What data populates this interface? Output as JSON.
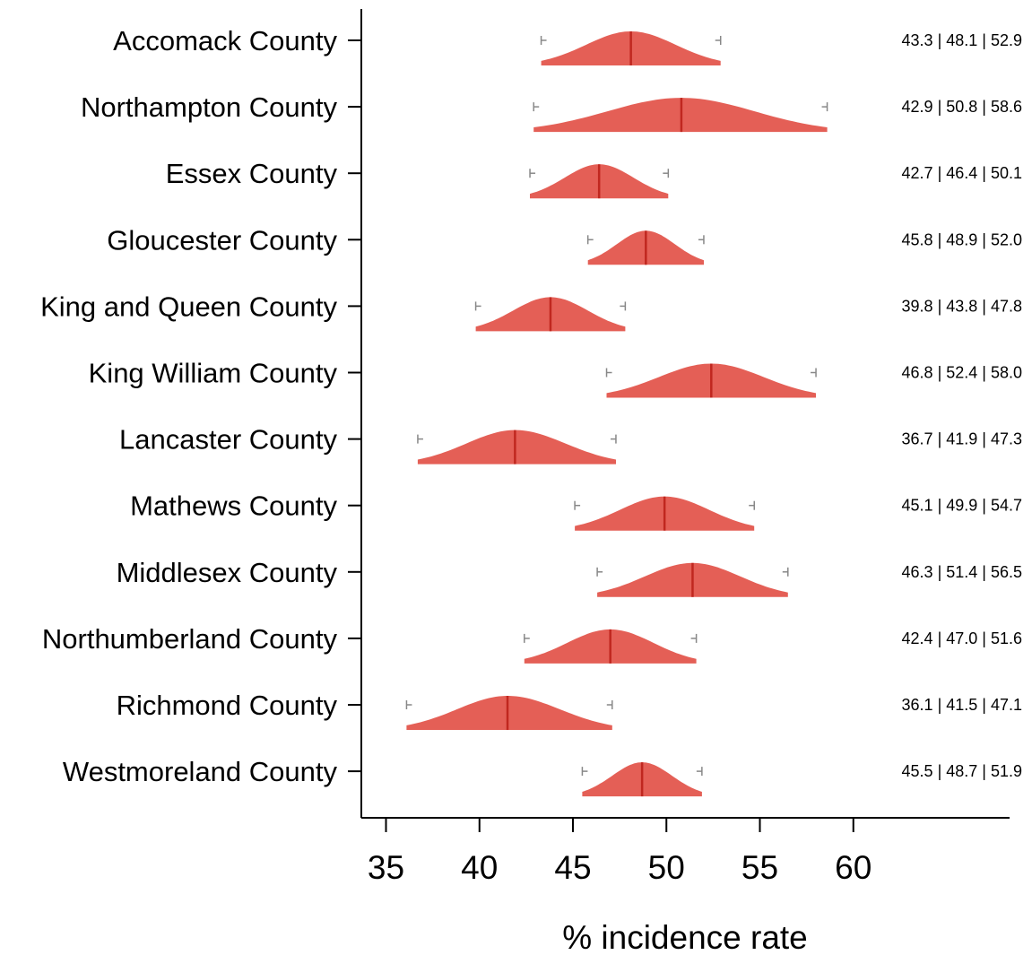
{
  "chart_data": {
    "type": "ridgeline",
    "xlabel": "% incidence rate",
    "xlim": [
      33.5,
      68.5
    ],
    "xticks": [
      35,
      40,
      45,
      50,
      55,
      60
    ],
    "fill_color": "#e45f56",
    "median_color": "#c0271f",
    "whisker_color": "#888888",
    "rows": [
      {
        "label": "Accomack County",
        "lower": 43.3,
        "median": 48.1,
        "upper": 52.9,
        "annotation": "43.3 | 48.1 | 52.9"
      },
      {
        "label": "Northampton County",
        "lower": 42.9,
        "median": 50.8,
        "upper": 58.6,
        "annotation": "42.9 | 50.8 | 58.6"
      },
      {
        "label": "Essex County",
        "lower": 42.7,
        "median": 46.4,
        "upper": 50.1,
        "annotation": "42.7 | 46.4 | 50.1"
      },
      {
        "label": "Gloucester County",
        "lower": 45.8,
        "median": 48.9,
        "upper": 52.0,
        "annotation": "45.8 | 48.9 | 52.0"
      },
      {
        "label": "King and Queen County",
        "lower": 39.8,
        "median": 43.8,
        "upper": 47.8,
        "annotation": "39.8 | 43.8 | 47.8"
      },
      {
        "label": "King William County",
        "lower": 46.8,
        "median": 52.4,
        "upper": 58.0,
        "annotation": "46.8 | 52.4 | 58.0"
      },
      {
        "label": "Lancaster County",
        "lower": 36.7,
        "median": 41.9,
        "upper": 47.3,
        "annotation": "36.7 | 41.9 | 47.3"
      },
      {
        "label": "Mathews County",
        "lower": 45.1,
        "median": 49.9,
        "upper": 54.7,
        "annotation": "45.1 | 49.9 | 54.7"
      },
      {
        "label": "Middlesex County",
        "lower": 46.3,
        "median": 51.4,
        "upper": 56.5,
        "annotation": "46.3 | 51.4 | 56.5"
      },
      {
        "label": "Northumberland County",
        "lower": 42.4,
        "median": 47.0,
        "upper": 51.6,
        "annotation": "42.4 | 47.0 | 51.6"
      },
      {
        "label": "Richmond County",
        "lower": 36.1,
        "median": 41.5,
        "upper": 47.1,
        "annotation": "36.1 | 41.5 | 47.1"
      },
      {
        "label": "Westmoreland County",
        "lower": 45.5,
        "median": 48.7,
        "upper": 51.9,
        "annotation": "45.5 | 48.7 | 51.9"
      }
    ]
  }
}
